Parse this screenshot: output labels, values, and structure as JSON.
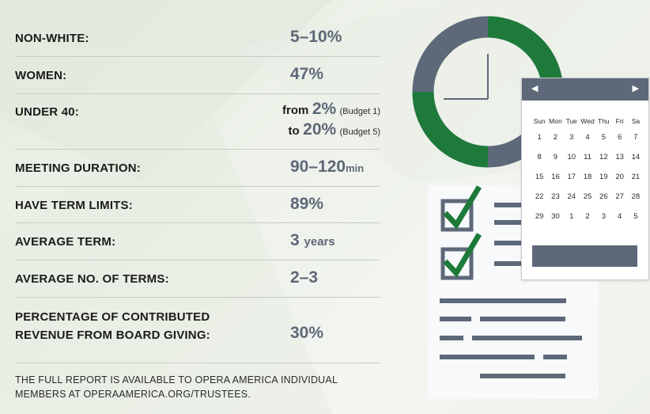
{
  "stats": [
    {
      "label": "NON-WHITE:",
      "value": "5–10%"
    },
    {
      "label": "WOMEN:",
      "value": "47%"
    },
    {
      "label": "UNDER 40:",
      "line1_prefix": "from",
      "line1_value": "2%",
      "line1_note": "(Budget 1)",
      "line2_prefix": "to",
      "line2_value": "20%",
      "line2_note": "(Budget 5)"
    },
    {
      "label": "MEETING DURATION:",
      "value": "90–120",
      "unit": "min"
    },
    {
      "label": "HAVE TERM LIMITS:",
      "value": "89%"
    },
    {
      "label": "AVERAGE TERM:",
      "value": "3",
      "unit": "years"
    },
    {
      "label": "AVERAGE NO. OF TERMS:",
      "value": "2–3"
    },
    {
      "label_line1": "PERCENTAGE OF CONTRIBUTED",
      "label_line2": "REVENUE FROM BOARD GIVING:",
      "value": "30%"
    }
  ],
  "footer": {
    "line1": "THE FULL REPORT IS AVAILABLE TO OPERA AMERICA INDIVIDUAL",
    "line2": "MEMBERS AT OPERAAMERICA.ORG/TRUSTEES."
  },
  "calendar": {
    "prev_glyph": "◀",
    "next_glyph": "▶",
    "weekdays": [
      "Sun",
      "Mon",
      "Tue",
      "Wed",
      "Thu",
      "Fri",
      "Sa"
    ],
    "weeks": [
      [
        "1",
        "2",
        "3",
        "4",
        "5",
        "6",
        "7"
      ],
      [
        "8",
        "9",
        "10",
        "11",
        "12",
        "13",
        "14"
      ],
      [
        "15",
        "16",
        "17",
        "18",
        "19",
        "20",
        "21"
      ],
      [
        "22",
        "23",
        "24",
        "25",
        "26",
        "27",
        "28"
      ],
      [
        "29",
        "30",
        "1",
        "2",
        "3",
        "4",
        "5"
      ]
    ]
  },
  "colors": {
    "accent_gray": "#5d6878",
    "accent_green": "#1e7a3a",
    "text_dark": "#1b1b1b"
  },
  "icons": [
    "clock-donut-icon",
    "calendar-icon",
    "checklist-document-icon",
    "checkmark-icon"
  ]
}
